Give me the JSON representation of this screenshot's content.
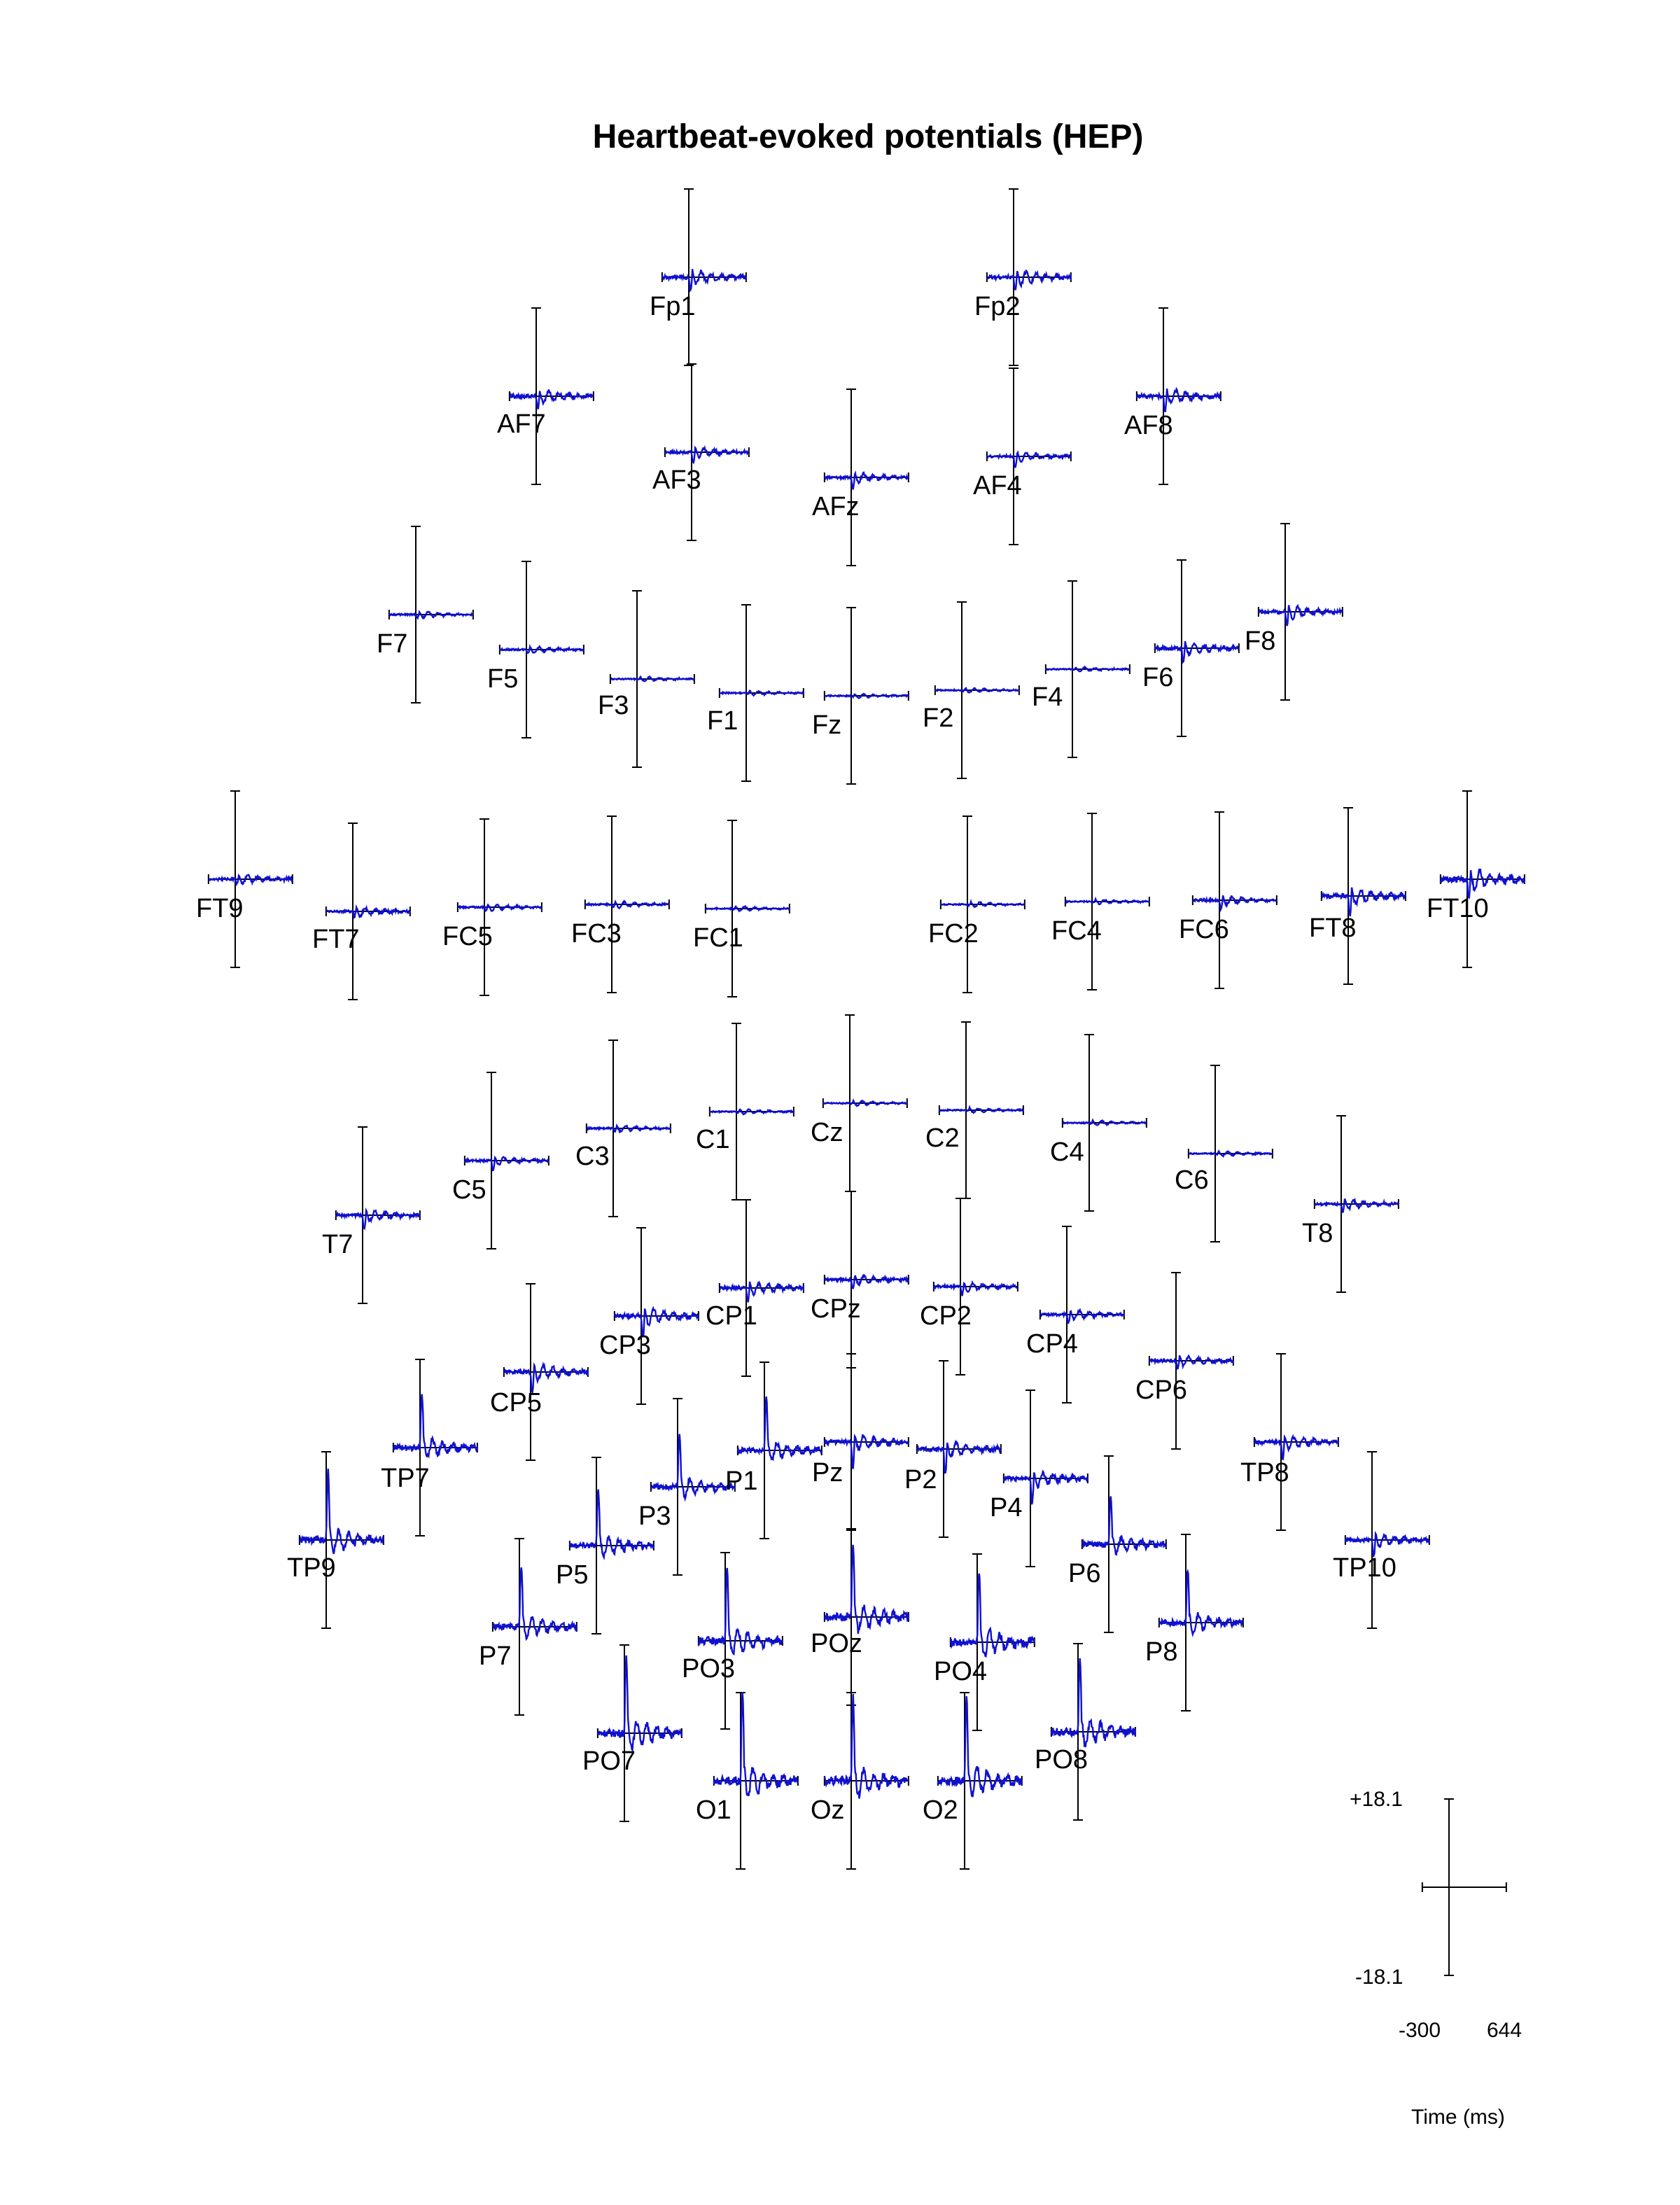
{
  "chart_data": {
    "type": "line",
    "title": "Heartbeat-evoked potentials (HEP)",
    "xlabel": "Time (ms)",
    "ylabel": "",
    "xlim": [
      -300,
      644
    ],
    "ylim": [
      -18.1,
      18.1
    ],
    "scale_labels": {
      "y_top": "+18.1",
      "y_bottom": "-18.1",
      "x_left": "-300",
      "x_right": "644"
    },
    "colors": {
      "trace": "#1010d0",
      "axes": "#000000"
    },
    "channels": [
      {
        "name": "Fp1",
        "amp": 0.9,
        "pk": 0.3
      },
      {
        "name": "Fp2",
        "amp": 0.9,
        "pk": 0.3
      },
      {
        "name": "AF7",
        "amp": 0.8,
        "pk": 0.3
      },
      {
        "name": "AF3",
        "amp": 0.6,
        "pk": 0.25
      },
      {
        "name": "AFz",
        "amp": 0.6,
        "pk": 0.25
      },
      {
        "name": "AF4",
        "amp": 0.6,
        "pk": 0.25
      },
      {
        "name": "AF8",
        "amp": 0.9,
        "pk": 0.35
      },
      {
        "name": "F7",
        "amp": 0.4,
        "pk": 0.1
      },
      {
        "name": "F5",
        "amp": 0.4,
        "pk": 0.1
      },
      {
        "name": "F3",
        "amp": 0.3,
        "pk": 0.05
      },
      {
        "name": "F1",
        "amp": 0.3,
        "pk": 0.05
      },
      {
        "name": "Fz",
        "amp": 0.3,
        "pk": 0.05
      },
      {
        "name": "F2",
        "amp": 0.3,
        "pk": 0.05
      },
      {
        "name": "F4",
        "amp": 0.3,
        "pk": 0.05
      },
      {
        "name": "F6",
        "amp": 0.8,
        "pk": 0.3
      },
      {
        "name": "F8",
        "amp": 0.8,
        "pk": 0.3
      },
      {
        "name": "FT9",
        "amp": 0.6,
        "pk": 0.15
      },
      {
        "name": "FT7",
        "amp": 0.6,
        "pk": 0.15
      },
      {
        "name": "FC5",
        "amp": 0.4,
        "pk": 0.1
      },
      {
        "name": "FC3",
        "amp": 0.4,
        "pk": 0.1
      },
      {
        "name": "FC1",
        "amp": 0.3,
        "pk": 0.05
      },
      {
        "name": "FC2",
        "amp": 0.3,
        "pk": 0.05
      },
      {
        "name": "FC4",
        "amp": 0.3,
        "pk": 0.05
      },
      {
        "name": "FC6",
        "amp": 0.6,
        "pk": 0.2
      },
      {
        "name": "FT8",
        "amp": 1.0,
        "pk": 0.4
      },
      {
        "name": "FT10",
        "amp": 1.3,
        "pk": 0.45
      },
      {
        "name": "T7",
        "amp": 0.7,
        "pk": 0.3
      },
      {
        "name": "C5",
        "amp": 0.5,
        "pk": 0.2
      },
      {
        "name": "C3",
        "amp": 0.4,
        "pk": 0.1
      },
      {
        "name": "C1",
        "amp": 0.3,
        "pk": 0.05
      },
      {
        "name": "Cz",
        "amp": 0.3,
        "pk": 0.05
      },
      {
        "name": "C2",
        "amp": 0.3,
        "pk": 0.05
      },
      {
        "name": "C4",
        "amp": 0.3,
        "pk": 0.05
      },
      {
        "name": "C6",
        "amp": 0.3,
        "pk": 0.05
      },
      {
        "name": "T8",
        "amp": 0.6,
        "pk": 0.2
      },
      {
        "name": "CP5",
        "amp": 1.0,
        "pk": 0.45
      },
      {
        "name": "CP3",
        "amp": 1.0,
        "pk": 0.45
      },
      {
        "name": "CP1",
        "amp": 0.8,
        "pk": 0.3
      },
      {
        "name": "CPz",
        "amp": 0.6,
        "pk": 0.2
      },
      {
        "name": "CP2",
        "amp": 0.6,
        "pk": 0.2
      },
      {
        "name": "CP4",
        "amp": 0.6,
        "pk": 0.2
      },
      {
        "name": "CP6",
        "amp": 0.6,
        "pk": 0.2
      },
      {
        "name": "TP9",
        "amp": 1.5,
        "pk": 0.8
      },
      {
        "name": "TP7",
        "amp": 1.2,
        "pk": 0.65
      },
      {
        "name": "P7",
        "amp": 1.4,
        "pk": 0.7
      },
      {
        "name": "P5",
        "amp": 1.3,
        "pk": 0.65
      },
      {
        "name": "P3",
        "amp": 1.2,
        "pk": 0.6
      },
      {
        "name": "P1",
        "amp": 1.2,
        "pk": 0.6
      },
      {
        "name": "Pz",
        "amp": 1.0,
        "pk": 0.5
      },
      {
        "name": "P2",
        "amp": 1.0,
        "pk": 0.5
      },
      {
        "name": "P4",
        "amp": 1.0,
        "pk": 0.5
      },
      {
        "name": "P6",
        "amp": 1.2,
        "pk": 0.55
      },
      {
        "name": "P8",
        "amp": 1.3,
        "pk": 0.6
      },
      {
        "name": "TP8",
        "amp": 0.8,
        "pk": 0.35
      },
      {
        "name": "TP10",
        "amp": 0.8,
        "pk": 0.35
      },
      {
        "name": "PO7",
        "amp": 1.8,
        "pk": 0.85
      },
      {
        "name": "PO3",
        "amp": 1.8,
        "pk": 0.85
      },
      {
        "name": "POz",
        "amp": 1.8,
        "pk": 0.8
      },
      {
        "name": "PO4",
        "amp": 1.8,
        "pk": 0.8
      },
      {
        "name": "PO8",
        "amp": 1.8,
        "pk": 0.8
      },
      {
        "name": "O1",
        "amp": 2.0,
        "pk": 1.0
      },
      {
        "name": "Oz",
        "amp": 2.0,
        "pk": 0.95
      },
      {
        "name": "O2",
        "amp": 2.0,
        "pk": 0.95
      }
    ]
  }
}
